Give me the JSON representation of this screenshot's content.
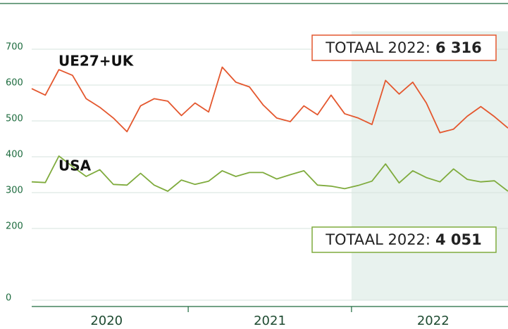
{
  "chart_data": {
    "type": "line",
    "categories": [
      null,
      null,
      null,
      null,
      null,
      null,
      "2020",
      null,
      null,
      null,
      null,
      null,
      null,
      null,
      null,
      null,
      null,
      null,
      "2021",
      null,
      null,
      null,
      null,
      null,
      null,
      null,
      null,
      null,
      null,
      null,
      "2022",
      null,
      null,
      null,
      null,
      null
    ],
    "series": [
      {
        "name": "UE27+UK",
        "color": "#e4572e",
        "values": [
          590,
          572,
          643,
          627,
          562,
          538,
          508,
          470,
          542,
          562,
          555,
          515,
          550,
          525,
          650,
          608,
          595,
          545,
          508,
          498,
          542,
          517,
          572,
          520,
          508,
          490,
          613,
          575,
          608,
          550,
          467,
          477,
          513,
          540,
          512,
          480
        ]
      },
      {
        "name": "USA",
        "color": "#7fab3d",
        "values": [
          330,
          328,
          402,
          373,
          345,
          364,
          323,
          321,
          354,
          321,
          304,
          335,
          323,
          332,
          361,
          345,
          356,
          356,
          338,
          350,
          361,
          321,
          318,
          311,
          320,
          332,
          380,
          327,
          361,
          342,
          330,
          366,
          337,
          330,
          333,
          304
        ]
      }
    ],
    "annotations": [
      {
        "text": "TOTAAL 2022:",
        "value": "6 316"
      },
      {
        "text": "TOTAAL 2022:",
        "value": "4 051"
      }
    ],
    "ylim": [
      0,
      750
    ],
    "yticks": [
      0,
      200,
      300,
      400,
      500,
      600,
      700
    ],
    "grid": true
  }
}
